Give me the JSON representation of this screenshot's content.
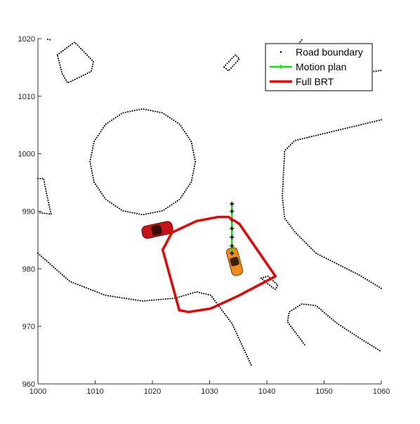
{
  "chart_data": {
    "type": "line",
    "xlim": [
      1000,
      1060
    ],
    "ylim": [
      960,
      1020
    ],
    "xticks": [
      1000,
      1010,
      1020,
      1030,
      1040,
      1050,
      1060
    ],
    "yticks": [
      960,
      970,
      980,
      990,
      1000,
      1010,
      1020
    ],
    "legend": "northeast",
    "series": [
      {
        "name": "Road boundary",
        "color": "#000000",
        "linestyle": ":",
        "x": [
          1003.4,
          1006.4,
          1009.7,
          1009.3,
          1005.2,
          1004.2,
          1003.4,
          null,
          1001.7,
          1002.2,
          null,
          1027.5,
          1026.8,
          1024.8,
          1021.8,
          1018.3,
          1014.8,
          1011.8,
          1009.8,
          1009.1,
          1009.8,
          1011.8,
          1014.8,
          1018.3,
          1021.8,
          1024.8,
          1026.8,
          1027.5,
          null,
          1000,
          1001.0,
          1001.5,
          1002.3,
          1000,
          null,
          1000,
          1005.6,
          1011.8,
          1018.3,
          1024.0,
          1027.7,
          1030.2,
          1033.9,
          1037.3,
          null,
          1060,
          1044.9,
          1043.1,
          1042.7,
          1043.1,
          1044.9,
          1048.6,
          1056.0,
          1060,
          null,
          1046.1,
          1043.9,
          1043.3,
          1046.5,
          1052.0,
          1056.6,
          1060,
          null,
          1032.5,
          1034.5,
          1035.2,
          1033.3,
          1032.5,
          null,
          1039.0,
          1040.2,
          1041.9,
          1041.5,
          1040.0,
          1039.0,
          null,
          1046.6,
          1043.6,
          1043.9,
          1046.1,
          1048.6,
          1052.3,
          1056.0,
          1060
        ],
        "values": [
          1017.2,
          1019.4,
          1016.0,
          1014.3,
          1012.3,
          1014.0,
          1017.2,
          null,
          1019.9,
          1019.8,
          null,
          998.6,
          1002.1,
          1005.1,
          1007.1,
          1007.8,
          1007.1,
          1005.1,
          1002.1,
          998.6,
          995.1,
          992.1,
          990.1,
          989.4,
          990.1,
          992.1,
          995.1,
          998.6,
          null,
          995.7,
          995.7,
          993.1,
          989.5,
          989.8,
          null,
          982.7,
          977.8,
          975.4,
          974.4,
          974.9,
          976.0,
          975.4,
          970.5,
          963.2,
          null,
          1005.9,
          1002.3,
          1000.5,
          992.5,
          988.8,
          986.4,
          982.7,
          979.0,
          976.6,
          null,
          1019.8,
          1017.0,
          1014.0,
          1013.0,
          1013.3,
          1014.0,
          1014.5,
          null,
          1015.1,
          1017.2,
          1016.5,
          1014.4,
          1015.1,
          null,
          978.4,
          978.7,
          977.2,
          976.4,
          977.5,
          978.4,
          null,
          966.8,
          970.8,
          972.5,
          973.9,
          973.6,
          970.5,
          968.1,
          965.6
        ]
      },
      {
        "name": "Motion plan",
        "color": "#00ee00",
        "linestyle": "-",
        "marker": "+",
        "x": [
          1033.9,
          1033.9,
          1033.9,
          1033.9,
          1033.9,
          1033.9,
          1033.9
        ],
        "values": [
          991.3,
          990.0,
          988.5,
          987.0,
          985.5,
          984.0,
          982.7
        ]
      },
      {
        "name": "Full BRT",
        "color": "#ee0000",
        "linestyle": "-",
        "x": [
          1021.8,
          1023.4,
          1027.7,
          1031.4,
          1033.3,
          1035.2,
          1041.5,
          1035.0,
          1030.2,
          1026.3,
          1024.7,
          1021.8
        ],
        "values": [
          983.3,
          986.3,
          988.3,
          989.0,
          989.0,
          987.8,
          978.7,
          975.3,
          973.1,
          972.5,
          972.8,
          983.3
        ]
      }
    ]
  }
}
